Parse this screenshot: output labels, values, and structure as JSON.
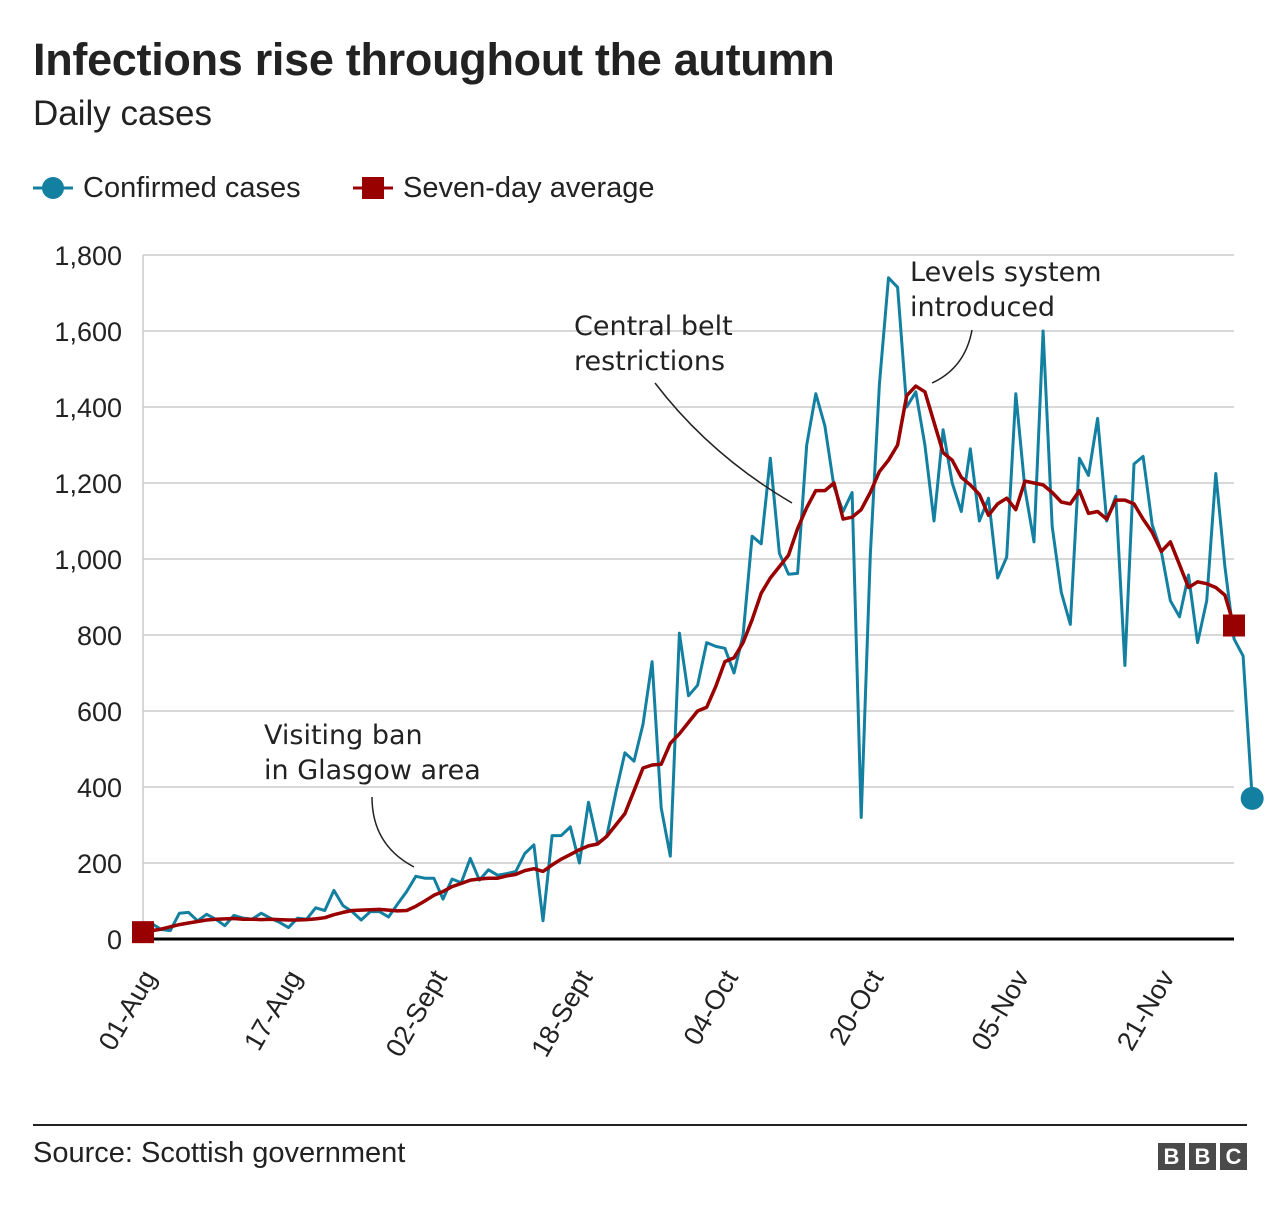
{
  "title": "Infections rise throughout the autumn",
  "subtitle": "Daily cases",
  "legend": {
    "confirmed": "Confirmed cases",
    "average": "Seven-day average"
  },
  "source": "Source: Scottish government",
  "brand": [
    "B",
    "B",
    "C"
  ],
  "colors": {
    "confirmed": "#1380a1",
    "average": "#990000",
    "grid": "#cccccc",
    "axis": "#000000"
  },
  "annotations": [
    {
      "lines": [
        "Visiting ban",
        "in Glasgow area"
      ],
      "day": 31
    },
    {
      "lines": [
        "Central belt",
        "restrictions"
      ],
      "day": 72
    },
    {
      "lines": [
        "Levels system",
        "introduced"
      ],
      "day": 87
    }
  ],
  "chart_data": {
    "type": "line",
    "title": "Infections rise throughout the autumn",
    "ylim": [
      0,
      1800
    ],
    "yticks": [
      "0",
      "200",
      "400",
      "600",
      "800",
      "1,000",
      "1,200",
      "1,400",
      "1,600",
      "1,800"
    ],
    "yticks_values": [
      0,
      200,
      400,
      600,
      800,
      1000,
      1200,
      1400,
      1600,
      1800
    ],
    "xticks": [
      {
        "label": "01-Aug",
        "day": 0
      },
      {
        "label": "17-Aug",
        "day": 16
      },
      {
        "label": "02-Sept",
        "day": 32
      },
      {
        "label": "18-Sept",
        "day": 48
      },
      {
        "label": "04-Oct",
        "day": 64
      },
      {
        "label": "20-Oct",
        "day": 80
      },
      {
        "label": "05-Nov",
        "day": 96
      },
      {
        "label": "21-Nov",
        "day": 112
      }
    ],
    "x_range_days": [
      0,
      120
    ],
    "series": [
      {
        "name": "Confirmed cases",
        "values": [
          18,
          40,
          25,
          22,
          68,
          70,
          48,
          65,
          52,
          35,
          62,
          55,
          52,
          68,
          55,
          44,
          30,
          55,
          52,
          82,
          75,
          128,
          88,
          72,
          50,
          72,
          72,
          58,
          92,
          125,
          165,
          160,
          160,
          105,
          158,
          148,
          212,
          155,
          182,
          168,
          172,
          178,
          225,
          248,
          48,
          272,
          272,
          295,
          200,
          360,
          252,
          270,
          385,
          490,
          468,
          565,
          730,
          345,
          218,
          805,
          640,
          668,
          780,
          770,
          765,
          700,
          800,
          1060,
          1040,
          1265,
          1015,
          960,
          962,
          1300,
          1435,
          1350,
          1190,
          1125,
          1175,
          320,
          1010,
          1460,
          1740,
          1715,
          1400,
          1440,
          1300,
          1100,
          1340,
          1200,
          1125,
          1290,
          1100,
          1160,
          950,
          1005,
          1435,
          1185,
          1045,
          1600,
          1085,
          912,
          828,
          1265,
          1220,
          1370,
          1100,
          1165,
          720,
          1250,
          1270,
          1090,
          1020,
          890,
          848,
          958,
          780,
          890,
          1225,
          980,
          790,
          745,
          370
        ]
      },
      {
        "name": "Seven-day average",
        "values": [
          18,
          22,
          26,
          32,
          38,
          42,
          46,
          50,
          52,
          53,
          54,
          52,
          52,
          51,
          52,
          51,
          50,
          50,
          51,
          53,
          56,
          64,
          70,
          75,
          76,
          77,
          78,
          76,
          74,
          75,
          86,
          100,
          115,
          125,
          138,
          146,
          155,
          158,
          160,
          160,
          166,
          170,
          180,
          185,
          178,
          195,
          210,
          222,
          235,
          245,
          250,
          270,
          300,
          330,
          390,
          450,
          458,
          460,
          515,
          540,
          570,
          600,
          610,
          665,
          730,
          740,
          780,
          840,
          910,
          950,
          980,
          1010,
          1080,
          1135,
          1180,
          1180,
          1200,
          1105,
          1110,
          1130,
          1175,
          1230,
          1260,
          1300,
          1430,
          1455,
          1440,
          1360,
          1280,
          1260,
          1215,
          1195,
          1170,
          1115,
          1145,
          1160,
          1130,
          1205,
          1200,
          1195,
          1175,
          1150,
          1145,
          1180,
          1120,
          1125,
          1105,
          1155,
          1155,
          1145,
          1105,
          1070,
          1020,
          1045,
          985,
          925,
          940,
          935,
          925,
          905,
          825
        ]
      }
    ]
  }
}
